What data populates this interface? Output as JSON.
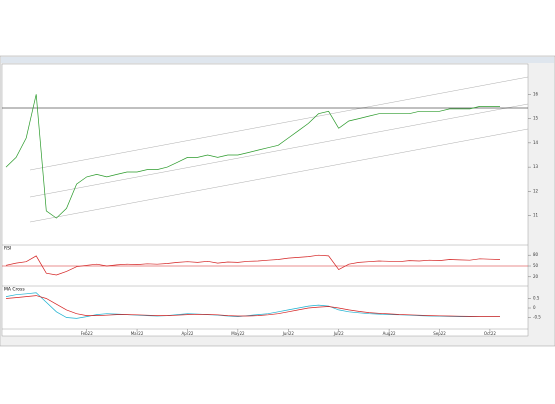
{
  "chart_data": [
    {
      "type": "line",
      "color": "#2a9a2a",
      "values": [
        13.0,
        13.4,
        14.2,
        16.0,
        11.2,
        10.9,
        11.3,
        12.3,
        12.6,
        12.7,
        12.6,
        12.7,
        12.8,
        12.8,
        12.9,
        12.9,
        13.0,
        13.2,
        13.4,
        13.4,
        13.5,
        13.4,
        13.5,
        13.5,
        13.6,
        13.7,
        13.8,
        13.9,
        14.2,
        14.5,
        14.8,
        15.2,
        15.3,
        14.6,
        14.9,
        15.0,
        15.1,
        15.2,
        15.2,
        15.2,
        15.2,
        15.3,
        15.3,
        15.3,
        15.4,
        15.4,
        15.4,
        15.5,
        15.5,
        15.5
      ],
      "ylim": [
        10,
        17
      ],
      "yticks": [
        11,
        12,
        13,
        14,
        15,
        16
      ],
      "xticks": [
        {
          "value": 8,
          "label": "Feb22"
        },
        {
          "value": 13,
          "label": "Mar22"
        },
        {
          "value": 18,
          "label": "Apr22"
        },
        {
          "value": 23,
          "label": "May22"
        },
        {
          "value": 28,
          "label": "Jun22"
        },
        {
          "value": 33,
          "label": "Jul22"
        },
        {
          "value": 38,
          "label": "Aug22"
        },
        {
          "value": 43,
          "label": "Sep22"
        },
        {
          "value": 48,
          "label": "Oct22"
        }
      ]
    },
    {
      "type": "line",
      "title": "RSI",
      "color": "#d42020",
      "values": [
        52,
        58,
        62,
        78,
        30,
        25,
        35,
        48,
        52,
        55,
        50,
        53,
        55,
        54,
        56,
        55,
        57,
        60,
        62,
        60,
        63,
        58,
        61,
        60,
        63,
        64,
        66,
        68,
        72,
        74,
        76,
        80,
        78,
        40,
        55,
        60,
        62,
        64,
        63,
        62,
        65,
        64,
        66,
        65,
        68,
        67,
        66,
        70,
        69,
        68
      ],
      "ylim": [
        0,
        100
      ],
      "yticks": [
        20,
        50,
        80
      ],
      "hline": 50
    },
    {
      "type": "line",
      "title": "MA Cross",
      "series": [
        {
          "color": "#1ab0d0",
          "values": [
            0.6,
            0.7,
            0.75,
            0.8,
            0.3,
            -0.2,
            -0.5,
            -0.55,
            -0.45,
            -0.35,
            -0.3,
            -0.32,
            -0.35,
            -0.38,
            -0.4,
            -0.42,
            -0.4,
            -0.35,
            -0.3,
            -0.32,
            -0.35,
            -0.38,
            -0.42,
            -0.45,
            -0.4,
            -0.35,
            -0.3,
            -0.2,
            -0.1,
            0.0,
            0.1,
            0.15,
            0.1,
            -0.1,
            -0.2,
            -0.25,
            -0.3,
            -0.32,
            -0.34,
            -0.36,
            -0.38,
            -0.4,
            -0.42,
            -0.43,
            -0.44,
            -0.45,
            -0.45,
            -0.46,
            -0.46,
            -0.46
          ]
        },
        {
          "color": "#d42020",
          "values": [
            0.5,
            0.55,
            0.6,
            0.65,
            0.5,
            0.2,
            -0.1,
            -0.3,
            -0.4,
            -0.4,
            -0.38,
            -0.35,
            -0.35,
            -0.36,
            -0.38,
            -0.4,
            -0.4,
            -0.38,
            -0.35,
            -0.33,
            -0.34,
            -0.36,
            -0.4,
            -0.42,
            -0.42,
            -0.4,
            -0.36,
            -0.3,
            -0.2,
            -0.1,
            0.0,
            0.05,
            0.08,
            0.0,
            -0.1,
            -0.18,
            -0.24,
            -0.28,
            -0.31,
            -0.34,
            -0.36,
            -0.38,
            -0.4,
            -0.41,
            -0.42,
            -0.43,
            -0.44,
            -0.45,
            -0.45,
            -0.45
          ]
        }
      ],
      "ylim": [
        -1,
        1
      ],
      "yticks": [
        -0.5,
        0,
        0.5
      ]
    }
  ]
}
